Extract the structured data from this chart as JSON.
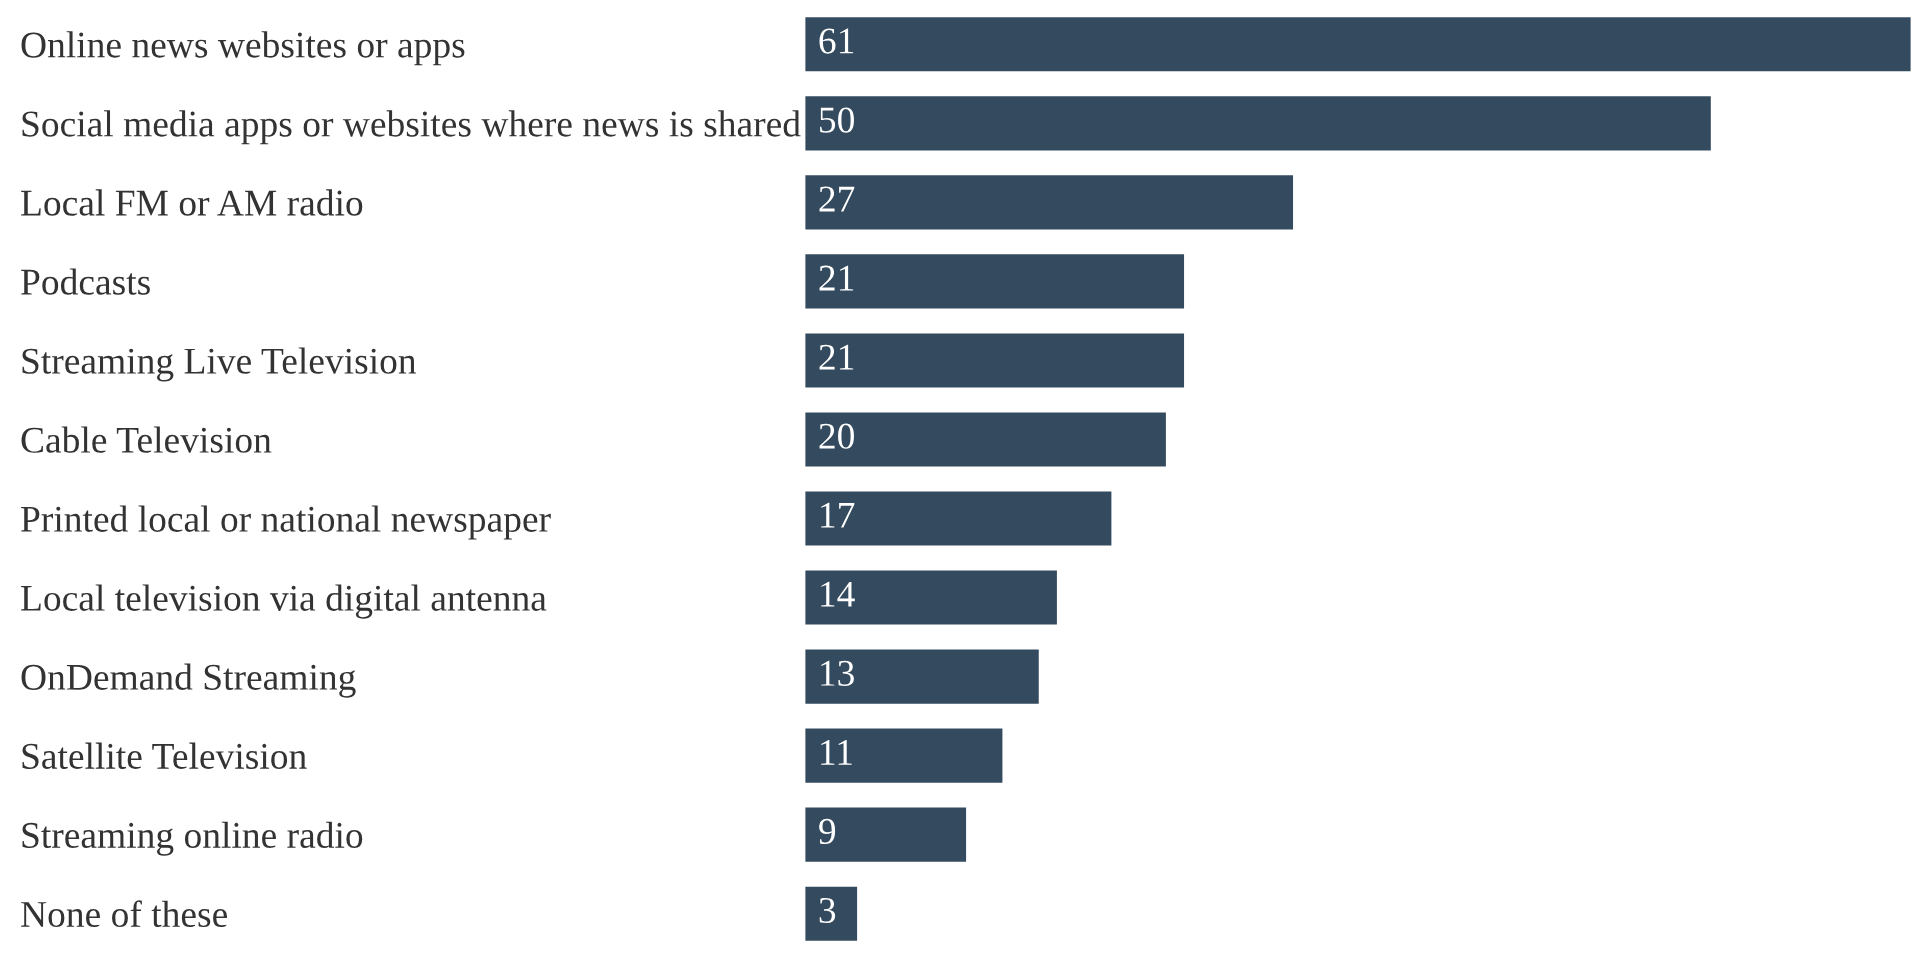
{
  "chart_data": {
    "type": "bar",
    "orientation": "horizontal",
    "data_labels": true,
    "grid": false,
    "legend": false,
    "tick_labels": "y",
    "color": "#344a5e",
    "categories": [
      "Online news websites or apps",
      "Social media apps or websites where news is shared",
      "Local FM or AM radio",
      "Podcasts",
      "Streaming Live Television",
      "Cable Television",
      "Printed local or national newspaper",
      "Local television via digital antenna",
      "OnDemand Streaming",
      "Satellite Television",
      "Streaming online radio",
      "None of these"
    ],
    "values": [
      61,
      50,
      27,
      21,
      21,
      20,
      17,
      14,
      13,
      11,
      9,
      3
    ]
  }
}
